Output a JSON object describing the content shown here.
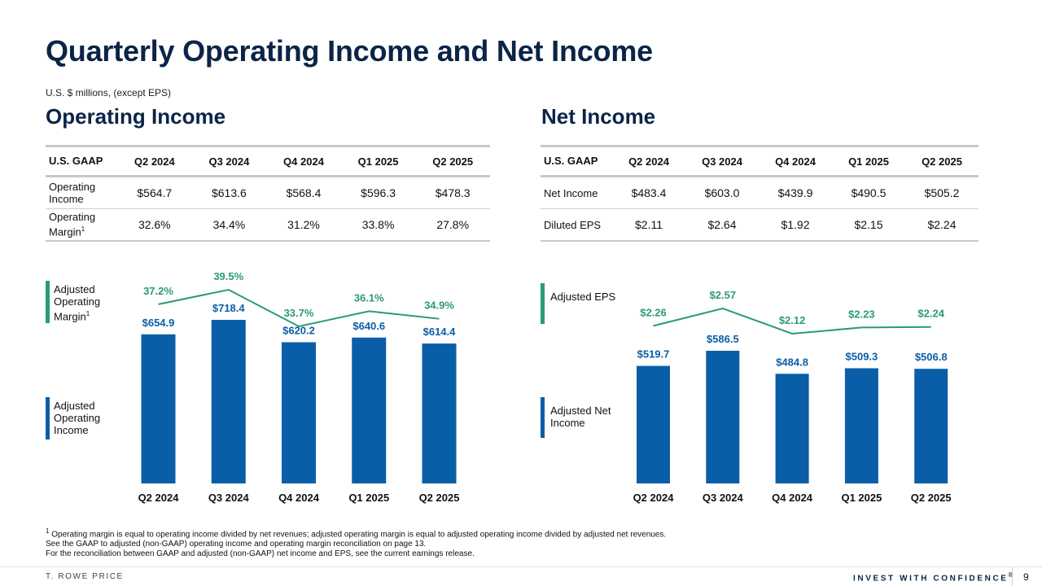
{
  "title": "Quarterly Operating Income and Net Income",
  "subtitle": "U.S. $ millions, (except EPS)",
  "operating_income": {
    "section_title": "Operating Income",
    "table": {
      "header": [
        "U.S. GAAP",
        "Q2 2024",
        "Q3 2024",
        "Q4 2024",
        "Q1 2025",
        "Q2 2025"
      ],
      "rows": [
        {
          "label": "Operating Income",
          "values": [
            "$564.7",
            "$613.6",
            "$568.4",
            "$596.3",
            "$478.3"
          ]
        },
        {
          "label": "Operating Margin",
          "label_sup": "1",
          "values": [
            "32.6%",
            "34.4%",
            "31.2%",
            "33.8%",
            "27.8%"
          ]
        }
      ]
    },
    "legend": {
      "line": {
        "label": "Adjusted Operating Margin",
        "sup": "1"
      },
      "bars": {
        "label": "Adjusted Operating Income"
      }
    }
  },
  "net_income": {
    "section_title": "Net Income",
    "table": {
      "header": [
        "U.S. GAAP",
        "Q2 2024",
        "Q3 2024",
        "Q4 2024",
        "Q1 2025",
        "Q2 2025"
      ],
      "rows": [
        {
          "label": "Net Income",
          "values": [
            "$483.4",
            "$603.0",
            "$439.9",
            "$490.5",
            "$505.2"
          ]
        },
        {
          "label": "Diluted EPS",
          "values": [
            "$2.11",
            "$2.64",
            "$1.92",
            "$2.15",
            "$2.24"
          ]
        }
      ]
    },
    "legend": {
      "line": {
        "label": "Adjusted EPS"
      },
      "bars": {
        "label": "Adjusted Net Income"
      }
    }
  },
  "chart_data": [
    {
      "type": "bar",
      "categories": [
        "Q2 2024",
        "Q3 2024",
        "Q4 2024",
        "Q1 2025",
        "Q2 2025"
      ],
      "series": [
        {
          "name": "Adjusted Operating Income",
          "type": "bar",
          "values": [
            654.9,
            718.4,
            620.2,
            640.6,
            614.4
          ],
          "labels": [
            "$654.9",
            "$718.4",
            "$620.2",
            "$640.6",
            "$614.4"
          ]
        },
        {
          "name": "Adjusted Operating Margin",
          "type": "line",
          "values": [
            37.2,
            39.5,
            33.7,
            36.1,
            34.9
          ],
          "labels": [
            "37.2%",
            "39.5%",
            "33.7%",
            "36.1%",
            "34.9%"
          ]
        }
      ],
      "colors": {
        "bar": "#0a5ea8",
        "line": "#2a9a7a"
      },
      "grid": false
    },
    {
      "type": "bar",
      "categories": [
        "Q2 2024",
        "Q3 2024",
        "Q4 2024",
        "Q1 2025",
        "Q2 2025"
      ],
      "series": [
        {
          "name": "Adjusted Net Income",
          "type": "bar",
          "values": [
            519.7,
            586.5,
            484.8,
            509.3,
            506.8
          ],
          "labels": [
            "$519.7",
            "$586.5",
            "$484.8",
            "$509.3",
            "$506.8"
          ]
        },
        {
          "name": "Adjusted EPS",
          "type": "line",
          "values": [
            2.26,
            2.57,
            2.12,
            2.23,
            2.24
          ],
          "labels": [
            "$2.26",
            "$2.57",
            "$2.12",
            "$2.23",
            "$2.24"
          ]
        }
      ],
      "colors": {
        "bar": "#0a5ea8",
        "line": "#2a9a7a"
      },
      "grid": false
    }
  ],
  "footnotes": [
    "Operating margin is equal to operating income divided by net revenues; adjusted operating margin is equal to adjusted operating income divided by adjusted net revenues.",
    "See the GAAP to adjusted (non-GAAP) operating income and operating margin reconciliation on page 13.",
    "For the reconciliation between GAAP and adjusted (non-GAAP) net income and EPS, see the current earnings release."
  ],
  "footnote_marker": "1",
  "footer": {
    "brand": "T. ROWE PRICE",
    "tagline": "INVEST WITH CONFIDENCE",
    "tagline_mark": "®",
    "page_number": "9"
  }
}
